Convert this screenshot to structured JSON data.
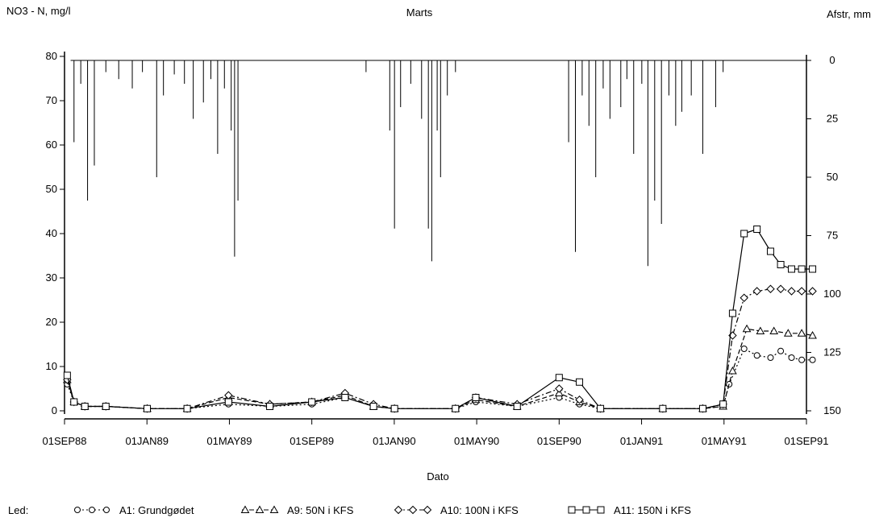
{
  "chart_data": {
    "type": "line",
    "title": "Marts",
    "ylabel_left": "NO3 - N, mg/l",
    "ylabel_right": "Afstr, mm",
    "xlabel": "Dato",
    "x_ticks": [
      "01SEP88",
      "01JAN89",
      "01MAY89",
      "01SEP89",
      "01JAN90",
      "01MAY90",
      "01SEP90",
      "01JAN91",
      "01MAY91",
      "01SEP91"
    ],
    "x_range": [
      "1988-09-01",
      "1991-09-01"
    ],
    "ylim_left": [
      0,
      80
    ],
    "yticks_left": [
      0,
      10,
      20,
      30,
      40,
      50,
      60,
      70,
      80
    ],
    "ylim_right_reversed": [
      0,
      150
    ],
    "yticks_right": [
      0,
      25,
      50,
      75,
      100,
      125,
      150
    ],
    "legend": {
      "prefix": "Led:",
      "placement": "bottom",
      "entries": [
        {
          "marker": "circle",
          "label": "A1: Grundgødet"
        },
        {
          "marker": "triangle",
          "label": "A9: 50N i KFS"
        },
        {
          "marker": "diamond",
          "label": "A10: 100N i KFS"
        },
        {
          "marker": "square",
          "label": "A11: 150N i KFS"
        }
      ]
    },
    "series": [
      {
        "name": "A1: Grundgødet",
        "marker": "circle",
        "dash": "dotted",
        "points": [
          [
            "1988-09-05",
            6
          ],
          [
            "1988-09-15",
            2
          ],
          [
            "1988-10-01",
            1
          ],
          [
            "1988-11-01",
            1
          ],
          [
            "1989-01-01",
            0.5
          ],
          [
            "1989-03-01",
            0.5
          ],
          [
            "1989-05-01",
            1.5
          ],
          [
            "1989-07-01",
            1
          ],
          [
            "1989-09-01",
            1.5
          ],
          [
            "1989-10-20",
            3
          ],
          [
            "1989-12-01",
            1
          ],
          [
            "1990-01-01",
            0.5
          ],
          [
            "1990-04-01",
            0.5
          ],
          [
            "1990-05-01",
            2
          ],
          [
            "1990-07-01",
            1
          ],
          [
            "1990-09-01",
            3
          ],
          [
            "1990-10-01",
            1.5
          ],
          [
            "1990-11-01",
            0.5
          ],
          [
            "1991-02-01",
            0.5
          ],
          [
            "1991-04-01",
            0.5
          ],
          [
            "1991-05-01",
            1
          ],
          [
            "1991-05-10",
            6
          ],
          [
            "1991-06-01",
            14
          ],
          [
            "1991-06-20",
            12.5
          ],
          [
            "1991-07-10",
            12
          ],
          [
            "1991-07-25",
            13.5
          ],
          [
            "1991-08-10",
            12
          ],
          [
            "1991-08-25",
            11.5
          ],
          [
            "1991-09-10",
            11.5
          ]
        ]
      },
      {
        "name": "A9: 50N i KFS",
        "marker": "triangle",
        "dash": "dashed",
        "points": [
          [
            "1988-09-05",
            7
          ],
          [
            "1988-09-15",
            2
          ],
          [
            "1988-10-01",
            1
          ],
          [
            "1988-11-01",
            1
          ],
          [
            "1989-01-01",
            0.5
          ],
          [
            "1989-03-01",
            0.5
          ],
          [
            "1989-05-01",
            3
          ],
          [
            "1989-07-01",
            1.5
          ],
          [
            "1989-09-01",
            2
          ],
          [
            "1989-10-20",
            3.5
          ],
          [
            "1989-12-01",
            1
          ],
          [
            "1990-01-01",
            0.5
          ],
          [
            "1990-04-01",
            0.5
          ],
          [
            "1990-05-01",
            2.5
          ],
          [
            "1990-07-01",
            1
          ],
          [
            "1990-09-01",
            4
          ],
          [
            "1990-10-01",
            2
          ],
          [
            "1990-11-01",
            0.5
          ],
          [
            "1991-02-01",
            0.5
          ],
          [
            "1991-04-01",
            0.5
          ],
          [
            "1991-05-01",
            1
          ],
          [
            "1991-05-15",
            9
          ],
          [
            "1991-06-05",
            18.5
          ],
          [
            "1991-06-25",
            18
          ],
          [
            "1991-07-15",
            18
          ],
          [
            "1991-08-05",
            17.5
          ],
          [
            "1991-08-25",
            17.5
          ],
          [
            "1991-09-10",
            17
          ]
        ]
      },
      {
        "name": "A10: 100N i KFS",
        "marker": "diamond",
        "dash": "dashdot",
        "points": [
          [
            "1988-09-05",
            7
          ],
          [
            "1988-09-15",
            2
          ],
          [
            "1988-10-01",
            1
          ],
          [
            "1988-11-01",
            1
          ],
          [
            "1989-01-01",
            0.5
          ],
          [
            "1989-03-01",
            0.5
          ],
          [
            "1989-05-01",
            3.5
          ],
          [
            "1989-07-01",
            1.5
          ],
          [
            "1989-09-01",
            2
          ],
          [
            "1989-10-20",
            4
          ],
          [
            "1989-12-01",
            1.5
          ],
          [
            "1990-01-01",
            0.5
          ],
          [
            "1990-04-01",
            0.5
          ],
          [
            "1990-05-01",
            3
          ],
          [
            "1990-07-01",
            1.5
          ],
          [
            "1990-09-01",
            5
          ],
          [
            "1990-10-01",
            2.5
          ],
          [
            "1990-11-01",
            0.5
          ],
          [
            "1991-02-01",
            0.5
          ],
          [
            "1991-04-01",
            0.5
          ],
          [
            "1991-05-01",
            1.5
          ],
          [
            "1991-05-15",
            17
          ],
          [
            "1991-06-01",
            25.5
          ],
          [
            "1991-06-20",
            27
          ],
          [
            "1991-07-10",
            27.5
          ],
          [
            "1991-07-25",
            27.5
          ],
          [
            "1991-08-10",
            27
          ],
          [
            "1991-08-25",
            27
          ],
          [
            "1991-09-10",
            27
          ]
        ]
      },
      {
        "name": "A11: 150N i KFS",
        "marker": "square",
        "dash": "solid",
        "points": [
          [
            "1988-09-05",
            8
          ],
          [
            "1988-09-15",
            2
          ],
          [
            "1988-10-01",
            1
          ],
          [
            "1988-11-01",
            1
          ],
          [
            "1989-01-01",
            0.5
          ],
          [
            "1989-03-01",
            0.5
          ],
          [
            "1989-05-01",
            2
          ],
          [
            "1989-07-01",
            1
          ],
          [
            "1989-09-01",
            2
          ],
          [
            "1989-10-20",
            3
          ],
          [
            "1989-12-01",
            1
          ],
          [
            "1990-01-01",
            0.5
          ],
          [
            "1990-04-01",
            0.5
          ],
          [
            "1990-05-01",
            3
          ],
          [
            "1990-07-01",
            1
          ],
          [
            "1990-09-01",
            7.5
          ],
          [
            "1990-10-01",
            6.5
          ],
          [
            "1990-11-01",
            0.5
          ],
          [
            "1991-02-01",
            0.5
          ],
          [
            "1991-04-01",
            0.5
          ],
          [
            "1991-05-01",
            1.5
          ],
          [
            "1991-05-15",
            22
          ],
          [
            "1991-06-01",
            40
          ],
          [
            "1991-06-20",
            41
          ],
          [
            "1991-07-10",
            36
          ],
          [
            "1991-07-25",
            33
          ],
          [
            "1991-08-10",
            32
          ],
          [
            "1991-08-25",
            32
          ],
          [
            "1991-09-10",
            32
          ]
        ]
      }
    ],
    "runoff_bars": {
      "name": "Afstr, mm",
      "axis": "right",
      "points": [
        [
          "1988-09-15",
          35
        ],
        [
          "1988-09-25",
          10
        ],
        [
          "1988-10-05",
          60
        ],
        [
          "1988-10-15",
          45
        ],
        [
          "1988-11-01",
          5
        ],
        [
          "1988-11-20",
          8
        ],
        [
          "1988-12-10",
          12
        ],
        [
          "1988-12-25",
          5
        ],
        [
          "1989-01-15",
          50
        ],
        [
          "1989-01-25",
          15
        ],
        [
          "1989-02-10",
          6
        ],
        [
          "1989-02-25",
          10
        ],
        [
          "1989-03-10",
          25
        ],
        [
          "1989-03-25",
          18
        ],
        [
          "1989-04-05",
          8
        ],
        [
          "1989-04-15",
          40
        ],
        [
          "1989-04-25",
          12
        ],
        [
          "1989-05-05",
          30
        ],
        [
          "1989-05-10",
          84
        ],
        [
          "1989-05-15",
          60
        ],
        [
          "1989-11-20",
          5
        ],
        [
          "1989-12-25",
          30
        ],
        [
          "1990-01-01",
          72
        ],
        [
          "1990-01-10",
          20
        ],
        [
          "1990-01-25",
          10
        ],
        [
          "1990-02-10",
          25
        ],
        [
          "1990-02-20",
          72
        ],
        [
          "1990-02-25",
          86
        ],
        [
          "1990-03-05",
          30
        ],
        [
          "1990-03-10",
          50
        ],
        [
          "1990-03-20",
          15
        ],
        [
          "1990-04-01",
          5
        ],
        [
          "1990-09-15",
          35
        ],
        [
          "1990-09-25",
          82
        ],
        [
          "1990-10-05",
          15
        ],
        [
          "1990-10-15",
          28
        ],
        [
          "1990-10-25",
          50
        ],
        [
          "1990-11-05",
          12
        ],
        [
          "1990-11-15",
          25
        ],
        [
          "1990-12-01",
          20
        ],
        [
          "1990-12-10",
          8
        ],
        [
          "1990-12-20",
          40
        ],
        [
          "1991-01-01",
          10
        ],
        [
          "1991-01-10",
          88
        ],
        [
          "1991-01-20",
          60
        ],
        [
          "1991-01-30",
          70
        ],
        [
          "1991-02-10",
          15
        ],
        [
          "1991-02-20",
          28
        ],
        [
          "1991-03-01",
          22
        ],
        [
          "1991-03-15",
          15
        ],
        [
          "1991-04-01",
          40
        ],
        [
          "1991-04-20",
          20
        ],
        [
          "1991-05-01",
          5
        ]
      ]
    }
  }
}
